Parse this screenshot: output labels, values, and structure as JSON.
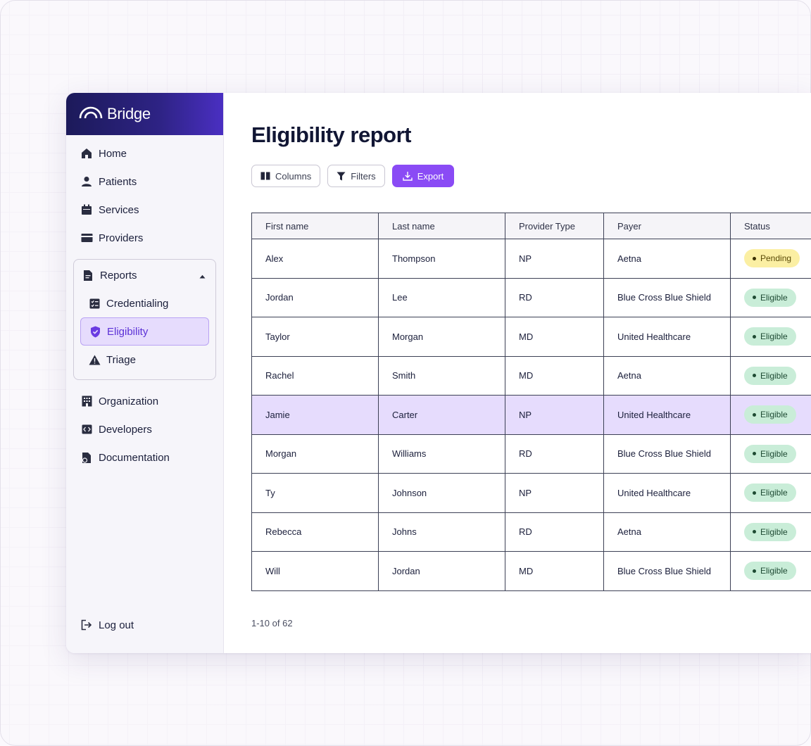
{
  "brand": {
    "name": "Bridge"
  },
  "sidebar": {
    "items": [
      {
        "label": "Home",
        "icon": "home-icon"
      },
      {
        "label": "Patients",
        "icon": "user-icon"
      },
      {
        "label": "Services",
        "icon": "calendar-icon"
      },
      {
        "label": "Providers",
        "icon": "card-icon"
      }
    ],
    "reports": {
      "label": "Reports",
      "icon": "document-icon",
      "expanded": true,
      "items": [
        {
          "label": "Credentialing",
          "icon": "checklist-icon"
        },
        {
          "label": "Eligibility",
          "icon": "shield-check-icon",
          "active": true
        },
        {
          "label": "Triage",
          "icon": "warning-icon"
        }
      ]
    },
    "items_bottom": [
      {
        "label": "Organization",
        "icon": "building-icon"
      },
      {
        "label": "Developers",
        "icon": "code-icon"
      },
      {
        "label": "Documentation",
        "icon": "docs-icon"
      }
    ],
    "logout": {
      "label": "Log out",
      "icon": "logout-icon"
    }
  },
  "main": {
    "title": "Eligibility report",
    "toolbar": {
      "columns": "Columns",
      "filters": "Filters",
      "export": "Export"
    },
    "table": {
      "headers": [
        "First name",
        "Last name",
        "Provider Type",
        "Payer",
        "Status"
      ],
      "rows": [
        [
          "Alex",
          "Thompson",
          "NP",
          "Aetna",
          "Pending"
        ],
        [
          "Jordan",
          "Lee",
          "RD",
          "Blue Cross Blue Shield",
          "Eligible"
        ],
        [
          "Taylor",
          "Morgan",
          "MD",
          "United Healthcare",
          "Eligible"
        ],
        [
          "Rachel",
          "Smith",
          "MD",
          "Aetna",
          "Eligible"
        ],
        [
          "Jamie",
          "Carter",
          "NP",
          "United Healthcare",
          "Eligible"
        ],
        [
          "Morgan",
          "Williams",
          "RD",
          "Blue Cross Blue Shield",
          "Eligible"
        ],
        [
          "Ty",
          "Johnson",
          "NP",
          "United Healthcare",
          "Eligible"
        ],
        [
          "Rebecca",
          "Johns",
          "RD",
          "Aetna",
          "Eligible"
        ],
        [
          "Will",
          "Jordan",
          "MD",
          "Blue Cross Blue Shield",
          "Eligible"
        ]
      ],
      "highlighted_row": 4
    },
    "pagination": "1-10 of 62"
  },
  "colors": {
    "accent": "#8a4bf5",
    "active_bg": "#e6dcfd",
    "eligible_bg": "#c9edd8",
    "pending_bg": "#fbefa3"
  }
}
